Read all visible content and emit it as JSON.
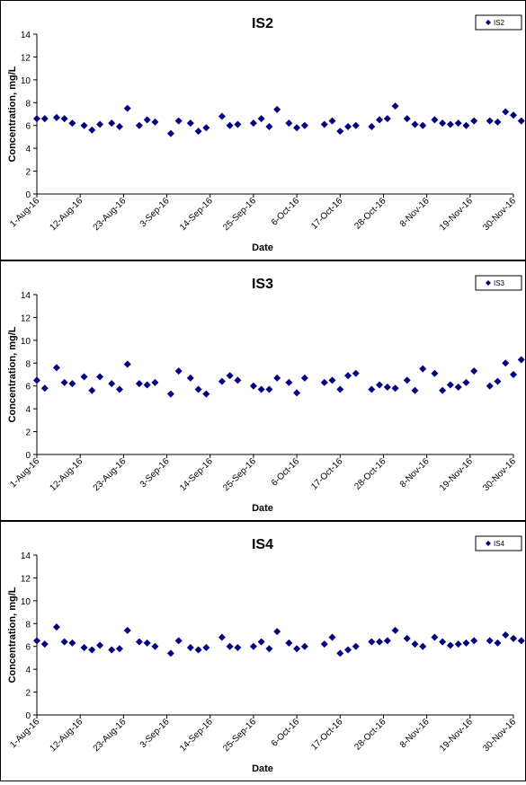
{
  "chart_data": [
    {
      "type": "scatter",
      "title": "IS2",
      "xlabel": "Date",
      "ylabel": "Concentration, mg/L",
      "ylim": [
        0,
        14
      ],
      "yticks": [
        0,
        2,
        4,
        6,
        8,
        10,
        12,
        14
      ],
      "xticks": [
        "1-Aug-16",
        "12-Aug-16",
        "23-Aug-16",
        "3-Sep-16",
        "14-Sep-16",
        "25-Sep-16",
        "6-Oct-16",
        "17-Oct-16",
        "28-Oct-16",
        "8-Nov-16",
        "19-Nov-16",
        "30-Nov-16"
      ],
      "xlim": [
        "2016-08-01",
        "2016-11-30"
      ],
      "grid": false,
      "legend": "top-right",
      "series": [
        {
          "name": "IS2",
          "color": "#000080",
          "marker": "diamond",
          "points": [
            [
              "2016-08-01",
              6.6
            ],
            [
              "2016-08-03",
              6.6
            ],
            [
              "2016-08-06",
              6.7
            ],
            [
              "2016-08-08",
              6.6
            ],
            [
              "2016-08-10",
              6.2
            ],
            [
              "2016-08-13",
              6.0
            ],
            [
              "2016-08-15",
              5.6
            ],
            [
              "2016-08-17",
              6.1
            ],
            [
              "2016-08-20",
              6.2
            ],
            [
              "2016-08-22",
              5.9
            ],
            [
              "2016-08-24",
              7.5
            ],
            [
              "2016-08-27",
              6.0
            ],
            [
              "2016-08-29",
              6.5
            ],
            [
              "2016-08-31",
              6.3
            ],
            [
              "2016-09-04",
              5.3
            ],
            [
              "2016-09-06",
              6.4
            ],
            [
              "2016-09-09",
              6.2
            ],
            [
              "2016-09-11",
              5.5
            ],
            [
              "2016-09-13",
              5.8
            ],
            [
              "2016-09-17",
              6.8
            ],
            [
              "2016-09-19",
              6.0
            ],
            [
              "2016-09-21",
              6.1
            ],
            [
              "2016-09-25",
              6.2
            ],
            [
              "2016-09-27",
              6.6
            ],
            [
              "2016-09-29",
              5.9
            ],
            [
              "2016-10-01",
              7.4
            ],
            [
              "2016-10-04",
              6.2
            ],
            [
              "2016-10-06",
              5.8
            ],
            [
              "2016-10-08",
              6.0
            ],
            [
              "2016-10-13",
              6.1
            ],
            [
              "2016-10-15",
              6.4
            ],
            [
              "2016-10-17",
              5.5
            ],
            [
              "2016-10-19",
              5.9
            ],
            [
              "2016-10-21",
              6.0
            ],
            [
              "2016-10-25",
              5.9
            ],
            [
              "2016-10-27",
              6.5
            ],
            [
              "2016-10-29",
              6.6
            ],
            [
              "2016-10-31",
              7.7
            ],
            [
              "2016-11-03",
              6.6
            ],
            [
              "2016-11-05",
              6.1
            ],
            [
              "2016-11-07",
              6.0
            ],
            [
              "2016-11-10",
              6.5
            ],
            [
              "2016-11-12",
              6.2
            ],
            [
              "2016-11-14",
              6.1
            ],
            [
              "2016-11-16",
              6.2
            ],
            [
              "2016-11-18",
              6.0
            ],
            [
              "2016-11-20",
              6.4
            ],
            [
              "2016-11-24",
              6.4
            ],
            [
              "2016-11-26",
              6.3
            ],
            [
              "2016-11-28",
              7.2
            ],
            [
              "2016-11-30",
              6.9
            ],
            [
              "2016-12-02",
              6.4
            ]
          ]
        }
      ]
    },
    {
      "type": "scatter",
      "title": "IS3",
      "xlabel": "Date",
      "ylabel": "Concentration, mg/L",
      "ylim": [
        0,
        14
      ],
      "yticks": [
        0,
        2,
        4,
        6,
        8,
        10,
        12,
        14
      ],
      "xticks": [
        "1-Aug-16",
        "12-Aug-16",
        "23-Aug-16",
        "3-Sep-16",
        "14-Sep-16",
        "25-Sep-16",
        "6-Oct-16",
        "17-Oct-16",
        "28-Oct-16",
        "8-Nov-16",
        "19-Nov-16",
        "30-Nov-16"
      ],
      "xlim": [
        "2016-08-01",
        "2016-11-30"
      ],
      "grid": false,
      "legend": "top-right",
      "series": [
        {
          "name": "IS3",
          "color": "#000080",
          "marker": "diamond",
          "points": [
            [
              "2016-08-01",
              6.5
            ],
            [
              "2016-08-03",
              5.8
            ],
            [
              "2016-08-06",
              7.6
            ],
            [
              "2016-08-08",
              6.3
            ],
            [
              "2016-08-10",
              6.2
            ],
            [
              "2016-08-13",
              6.8
            ],
            [
              "2016-08-15",
              5.6
            ],
            [
              "2016-08-17",
              6.8
            ],
            [
              "2016-08-20",
              6.2
            ],
            [
              "2016-08-22",
              5.7
            ],
            [
              "2016-08-24",
              7.9
            ],
            [
              "2016-08-27",
              6.2
            ],
            [
              "2016-08-29",
              6.1
            ],
            [
              "2016-08-31",
              6.3
            ],
            [
              "2016-09-04",
              5.3
            ],
            [
              "2016-09-06",
              7.3
            ],
            [
              "2016-09-09",
              6.7
            ],
            [
              "2016-09-11",
              5.7
            ],
            [
              "2016-09-13",
              5.3
            ],
            [
              "2016-09-17",
              6.4
            ],
            [
              "2016-09-19",
              6.9
            ],
            [
              "2016-09-21",
              6.5
            ],
            [
              "2016-09-25",
              6.0
            ],
            [
              "2016-09-27",
              5.7
            ],
            [
              "2016-09-29",
              5.7
            ],
            [
              "2016-10-01",
              6.7
            ],
            [
              "2016-10-04",
              6.3
            ],
            [
              "2016-10-06",
              5.4
            ],
            [
              "2016-10-08",
              6.7
            ],
            [
              "2016-10-13",
              6.3
            ],
            [
              "2016-10-15",
              6.5
            ],
            [
              "2016-10-17",
              5.7
            ],
            [
              "2016-10-19",
              6.9
            ],
            [
              "2016-10-21",
              7.1
            ],
            [
              "2016-10-25",
              5.7
            ],
            [
              "2016-10-27",
              6.1
            ],
            [
              "2016-10-29",
              5.9
            ],
            [
              "2016-10-31",
              5.8
            ],
            [
              "2016-11-03",
              6.5
            ],
            [
              "2016-11-05",
              5.6
            ],
            [
              "2016-11-07",
              7.5
            ],
            [
              "2016-11-10",
              7.1
            ],
            [
              "2016-11-12",
              5.6
            ],
            [
              "2016-11-14",
              6.1
            ],
            [
              "2016-11-16",
              5.9
            ],
            [
              "2016-11-18",
              6.3
            ],
            [
              "2016-11-20",
              7.3
            ],
            [
              "2016-11-24",
              6.0
            ],
            [
              "2016-11-26",
              6.4
            ],
            [
              "2016-11-28",
              8.0
            ],
            [
              "2016-11-30",
              7.0
            ],
            [
              "2016-12-02",
              8.3
            ]
          ]
        }
      ]
    },
    {
      "type": "scatter",
      "title": "IS4",
      "xlabel": "Date",
      "ylabel": "Concentration, mg/L",
      "ylim": [
        0,
        14
      ],
      "yticks": [
        0,
        2,
        4,
        6,
        8,
        10,
        12,
        14
      ],
      "xticks": [
        "1-Aug-16",
        "12-Aug-16",
        "23-Aug-16",
        "3-Sep-16",
        "14-Sep-16",
        "25-Sep-16",
        "6-Oct-16",
        "17-Oct-16",
        "28-Oct-16",
        "8-Nov-16",
        "19-Nov-16",
        "30-Nov-16"
      ],
      "xlim": [
        "2016-08-01",
        "2016-11-30"
      ],
      "grid": false,
      "legend": "top-right",
      "series": [
        {
          "name": "IS4",
          "color": "#000080",
          "marker": "diamond",
          "points": [
            [
              "2016-08-01",
              6.5
            ],
            [
              "2016-08-03",
              6.2
            ],
            [
              "2016-08-06",
              7.7
            ],
            [
              "2016-08-08",
              6.4
            ],
            [
              "2016-08-10",
              6.3
            ],
            [
              "2016-08-13",
              5.9
            ],
            [
              "2016-08-15",
              5.7
            ],
            [
              "2016-08-17",
              6.1
            ],
            [
              "2016-08-20",
              5.7
            ],
            [
              "2016-08-22",
              5.8
            ],
            [
              "2016-08-24",
              7.4
            ],
            [
              "2016-08-27",
              6.4
            ],
            [
              "2016-08-29",
              6.3
            ],
            [
              "2016-08-31",
              6.0
            ],
            [
              "2016-09-04",
              5.4
            ],
            [
              "2016-09-06",
              6.5
            ],
            [
              "2016-09-09",
              5.9
            ],
            [
              "2016-09-11",
              5.7
            ],
            [
              "2016-09-13",
              5.9
            ],
            [
              "2016-09-17",
              6.8
            ],
            [
              "2016-09-19",
              6.0
            ],
            [
              "2016-09-21",
              5.9
            ],
            [
              "2016-09-25",
              6.0
            ],
            [
              "2016-09-27",
              6.4
            ],
            [
              "2016-09-29",
              5.8
            ],
            [
              "2016-10-01",
              7.3
            ],
            [
              "2016-10-04",
              6.3
            ],
            [
              "2016-10-06",
              5.8
            ],
            [
              "2016-10-08",
              6.0
            ],
            [
              "2016-10-13",
              6.2
            ],
            [
              "2016-10-15",
              6.8
            ],
            [
              "2016-10-17",
              5.4
            ],
            [
              "2016-10-19",
              5.7
            ],
            [
              "2016-10-21",
              6.0
            ],
            [
              "2016-10-25",
              6.4
            ],
            [
              "2016-10-27",
              6.4
            ],
            [
              "2016-10-29",
              6.5
            ],
            [
              "2016-10-31",
              7.4
            ],
            [
              "2016-11-03",
              6.7
            ],
            [
              "2016-11-05",
              6.2
            ],
            [
              "2016-11-07",
              6.0
            ],
            [
              "2016-11-10",
              6.8
            ],
            [
              "2016-11-12",
              6.4
            ],
            [
              "2016-11-14",
              6.1
            ],
            [
              "2016-11-16",
              6.2
            ],
            [
              "2016-11-18",
              6.3
            ],
            [
              "2016-11-20",
              6.5
            ],
            [
              "2016-11-24",
              6.5
            ],
            [
              "2016-11-26",
              6.3
            ],
            [
              "2016-11-28",
              7.0
            ],
            [
              "2016-11-30",
              6.7
            ],
            [
              "2016-12-02",
              6.5
            ]
          ]
        }
      ]
    }
  ]
}
